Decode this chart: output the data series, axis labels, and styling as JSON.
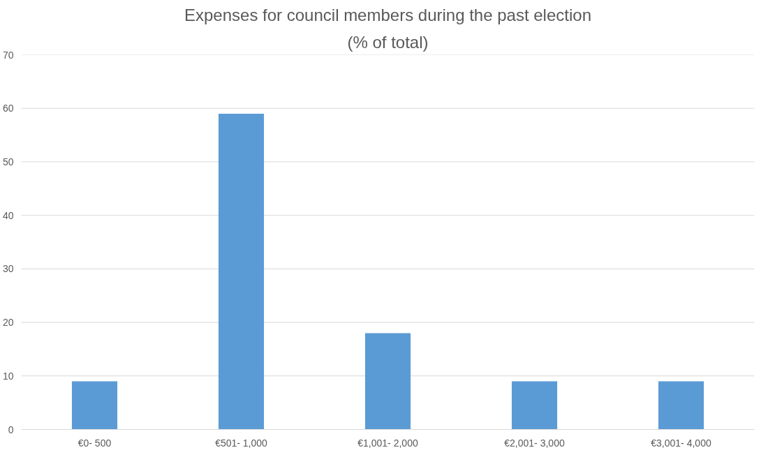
{
  "chart_data": {
    "type": "bar",
    "title": "Expenses for council members during the past election",
    "subtitle": "(% of total)",
    "categories": [
      "€0- 500",
      "€501- 1,000",
      "€1,001- 2,000",
      "€2,001- 3,000",
      "€3,001- 4,000"
    ],
    "values": [
      9,
      59,
      18,
      9,
      9
    ],
    "color": "#5b9bd5",
    "ylim": [
      0,
      70
    ],
    "yticks": [
      0,
      10,
      20,
      30,
      40,
      50,
      60,
      70
    ],
    "grid": "y"
  }
}
